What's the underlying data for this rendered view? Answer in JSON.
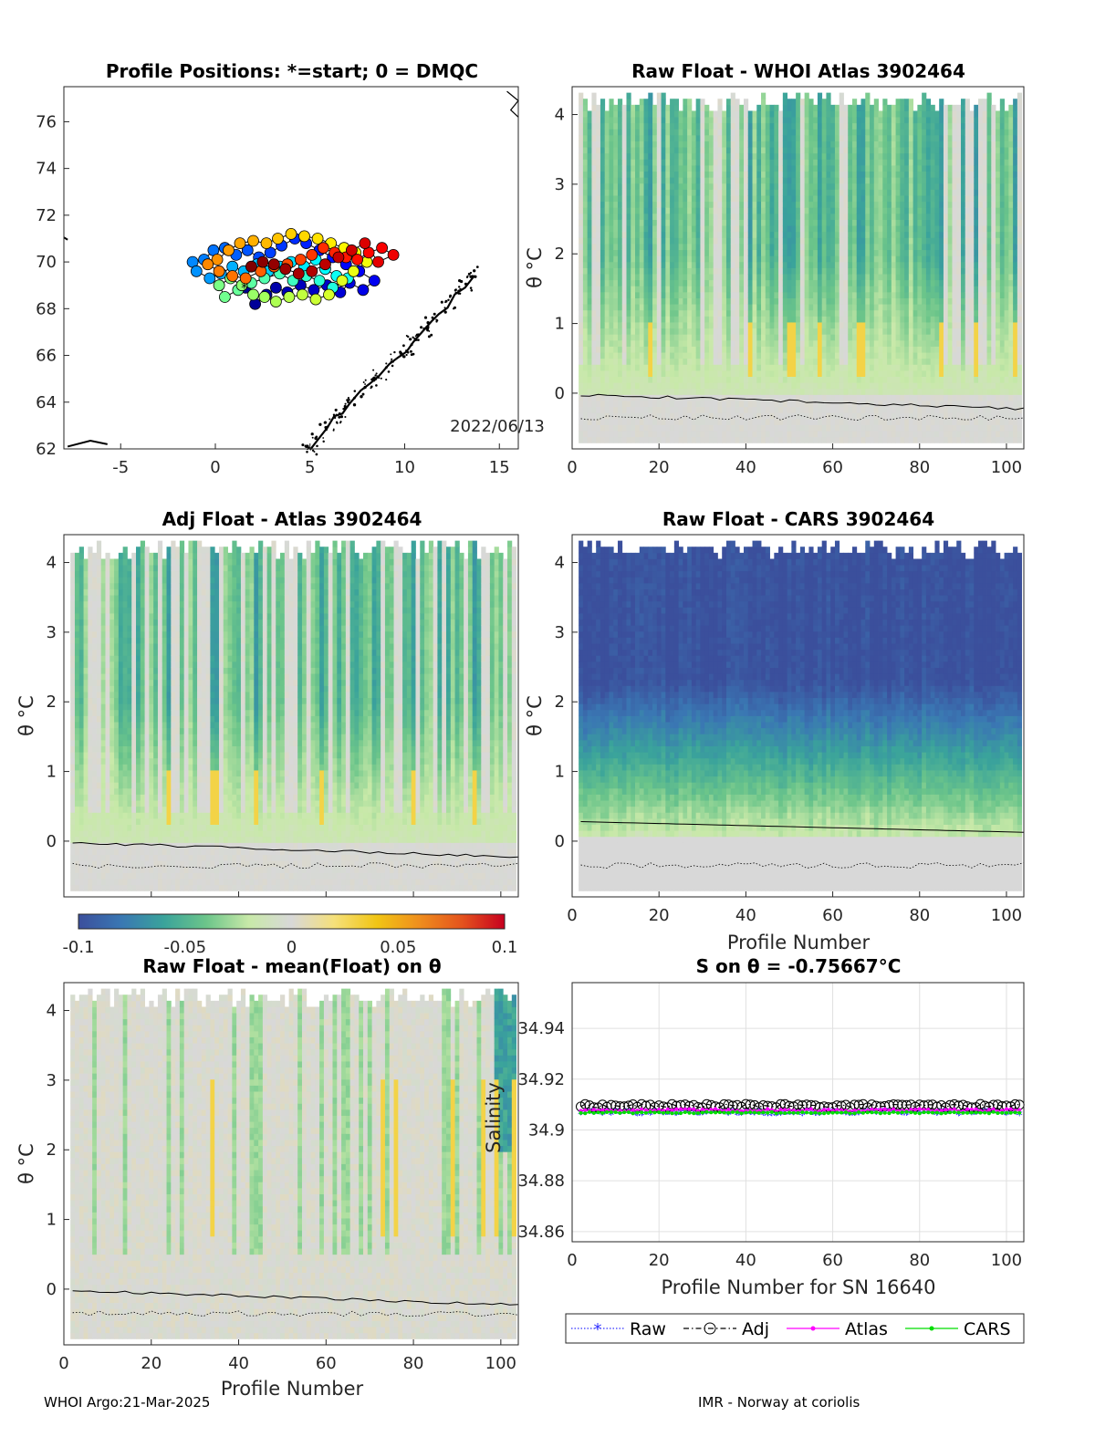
{
  "float_id": "3902464",
  "footer": {
    "left": "WHOI Argo:21-Mar-2025",
    "right": "IMR - Norway at coriolis"
  },
  "colorbar": {
    "ticks": [
      "-0.1",
      "-0.05",
      "0",
      "0.05",
      "0.1"
    ],
    "colors": [
      "#3b4f9c",
      "#3a77b3",
      "#3aa39b",
      "#6cc58a",
      "#c8e9a8",
      "#d8d8d8",
      "#f5e07a",
      "#f1c514",
      "#ef8e1d",
      "#e4531d",
      "#c7001f"
    ]
  },
  "chart_data": [
    {
      "type": "scatter",
      "panel": "positions",
      "title": "Profile Positions: *=start; 0 = DMQC",
      "date_label": "2022/06/13",
      "xlim": [
        -8,
        16
      ],
      "ylim": [
        62,
        77.5
      ],
      "xticks": [
        "-5",
        "0",
        "5",
        "10",
        "15"
      ],
      "yticks": [
        "62",
        "64",
        "66",
        "68",
        "70",
        "72",
        "74",
        "76"
      ],
      "profiles": [
        [
          1.6,
          68.9
        ],
        [
          2.1,
          68.2
        ],
        [
          2.7,
          68.6
        ],
        [
          3.2,
          68.9
        ],
        [
          3.8,
          68.7
        ],
        [
          4.5,
          69.0
        ],
        [
          5.2,
          68.8
        ],
        [
          5.9,
          69.0
        ],
        [
          6.6,
          68.7
        ],
        [
          7.1,
          69.1
        ],
        [
          7.8,
          68.8
        ],
        [
          8.4,
          69.2
        ],
        [
          7.6,
          69.6
        ],
        [
          6.9,
          69.9
        ],
        [
          6.2,
          70.2
        ],
        [
          5.5,
          70.5
        ],
        [
          4.8,
          70.8
        ],
        [
          4.2,
          71.0
        ],
        [
          3.5,
          70.7
        ],
        [
          2.9,
          70.4
        ],
        [
          2.3,
          70.2
        ],
        [
          1.7,
          70.5
        ],
        [
          1.1,
          70.3
        ],
        [
          0.5,
          70.6
        ],
        [
          -0.1,
          70.5
        ],
        [
          -0.6,
          70.1
        ],
        [
          -1.2,
          70.0
        ],
        [
          -1.0,
          69.6
        ],
        [
          -0.3,
          69.3
        ],
        [
          0.3,
          69.5
        ],
        [
          0.9,
          69.8
        ],
        [
          1.5,
          69.6
        ],
        [
          2.2,
          69.9
        ],
        [
          2.8,
          69.6
        ],
        [
          3.4,
          69.8
        ],
        [
          4.0,
          70.0
        ],
        [
          4.7,
          69.8
        ],
        [
          5.3,
          70.1
        ],
        [
          5.8,
          69.7
        ],
        [
          6.4,
          69.4
        ],
        [
          7.0,
          69.3
        ],
        [
          6.2,
          68.9
        ],
        [
          5.5,
          69.2
        ],
        [
          4.8,
          69.4
        ],
        [
          4.1,
          69.2
        ],
        [
          3.4,
          69.5
        ],
        [
          2.6,
          69.3
        ],
        [
          1.9,
          69.1
        ],
        [
          1.2,
          68.8
        ],
        [
          0.5,
          68.5
        ],
        [
          0.2,
          69.0
        ],
        [
          0.8,
          69.3
        ],
        [
          1.4,
          69.0
        ],
        [
          2.0,
          68.6
        ],
        [
          2.6,
          68.5
        ],
        [
          3.2,
          68.3
        ],
        [
          3.9,
          68.5
        ],
        [
          4.6,
          68.6
        ],
        [
          5.3,
          68.4
        ],
        [
          6.0,
          68.6
        ],
        [
          6.7,
          69.2
        ],
        [
          7.3,
          69.6
        ],
        [
          8.0,
          70.0
        ],
        [
          7.4,
          70.4
        ],
        [
          6.8,
          70.6
        ],
        [
          6.1,
          70.8
        ],
        [
          5.4,
          71.0
        ],
        [
          4.7,
          71.1
        ],
        [
          4.0,
          71.2
        ],
        [
          3.3,
          71.0
        ],
        [
          2.7,
          70.8
        ],
        [
          2.0,
          70.9
        ],
        [
          1.3,
          70.8
        ],
        [
          0.7,
          70.5
        ],
        [
          0.1,
          70.1
        ],
        [
          -0.4,
          69.9
        ],
        [
          0.2,
          69.6
        ],
        [
          0.9,
          69.4
        ],
        [
          1.6,
          69.3
        ],
        [
          2.4,
          69.6
        ],
        [
          3.1,
          69.8
        ],
        [
          3.8,
          69.9
        ],
        [
          4.5,
          70.1
        ],
        [
          5.1,
          70.3
        ],
        [
          5.7,
          70.6
        ],
        [
          6.3,
          70.4
        ],
        [
          6.9,
          70.2
        ],
        [
          7.5,
          70.1
        ],
        [
          8.1,
          70.4
        ],
        [
          8.8,
          70.6
        ],
        [
          9.4,
          70.3
        ],
        [
          8.6,
          70.0
        ],
        [
          7.9,
          70.8
        ],
        [
          7.2,
          70.5
        ],
        [
          6.5,
          70.2
        ],
        [
          5.8,
          69.9
        ],
        [
          5.1,
          69.6
        ],
        [
          4.4,
          69.5
        ],
        [
          3.7,
          69.7
        ],
        [
          3.1,
          69.9
        ],
        [
          2.5,
          70.0
        ],
        [
          1.9,
          69.8
        ]
      ]
    },
    {
      "type": "heatmap",
      "panel": "raw_whoi",
      "title": "Raw Float - WHOI Atlas  3902464",
      "ylabel": "θ °C",
      "xlim": [
        0,
        104
      ],
      "ylim": [
        -0.8,
        4.4
      ],
      "xticks": [
        "0",
        "20",
        "40",
        "60",
        "80",
        "100"
      ],
      "yticks": [
        "0",
        "1",
        "2",
        "3",
        "4"
      ],
      "colorscale": [
        -0.1,
        0.1
      ],
      "profile_range": [
        2,
        103
      ],
      "seed": 11,
      "style": "anomaly"
    },
    {
      "type": "heatmap",
      "panel": "adj_atlas",
      "title": "Adj Float - Atlas  3902464",
      "ylabel": "θ °C",
      "xlim": [
        0,
        104
      ],
      "ylim": [
        -0.8,
        4.4
      ],
      "xticks": [],
      "yticks": [
        "0",
        "1",
        "2",
        "3",
        "4"
      ],
      "colorscale": [
        -0.1,
        0.1
      ],
      "profile_range": [
        2,
        103
      ],
      "seed": 23,
      "style": "anomaly"
    },
    {
      "type": "heatmap",
      "panel": "raw_cars",
      "title": "Raw Float - CARS  3902464",
      "xlabel": "Profile Number",
      "ylabel": "θ °C",
      "xlim": [
        0,
        104
      ],
      "ylim": [
        -0.8,
        4.4
      ],
      "xticks": [
        "0",
        "20",
        "40",
        "60",
        "80",
        "100"
      ],
      "yticks": [
        "0",
        "1",
        "2",
        "3",
        "4"
      ],
      "colorscale": [
        -0.1,
        0.1
      ],
      "profile_range": [
        2,
        103
      ],
      "seed": 37,
      "style": "cars"
    },
    {
      "type": "heatmap",
      "panel": "raw_mean",
      "title": "Raw Float - mean(Float) on θ",
      "xlabel": "Profile Number",
      "ylabel": "θ °C",
      "xlim": [
        0,
        104
      ],
      "ylim": [
        -0.8,
        4.4
      ],
      "xticks": [
        "0",
        "20",
        "40",
        "60",
        "80",
        "100"
      ],
      "yticks": [
        "0",
        "1",
        "2",
        "3",
        "4"
      ],
      "colorscale": [
        -0.1,
        0.1
      ],
      "profile_range": [
        2,
        103
      ],
      "seed": 51,
      "style": "mean"
    },
    {
      "type": "line",
      "panel": "salinity",
      "title": "S on θ = -0.75667°C",
      "xlabel": "Profile Number for SN 16640",
      "ylabel": "Salinity",
      "xlim": [
        0,
        104
      ],
      "ylim": [
        34.856,
        34.958
      ],
      "xticks": [
        "0",
        "20",
        "40",
        "60",
        "80",
        "100"
      ],
      "yticks": [
        "34.86",
        "34.88",
        "34.9",
        "34.92",
        "34.94"
      ],
      "series": [
        {
          "name": "Raw",
          "color": "#3333ff",
          "marker": "*",
          "base": 34.9065,
          "jitter": 0.0008
        },
        {
          "name": "Adj",
          "color": "#000000",
          "marker": "o",
          "base": 34.9095,
          "jitter": 0.0007
        },
        {
          "name": "Atlas",
          "color": "#ff00ff",
          "marker": ".",
          "base": 34.9078,
          "jitter": 0.0005
        },
        {
          "name": "CARS",
          "color": "#00dd00",
          "marker": ".",
          "base": 34.9068,
          "jitter": 0.0003
        }
      ]
    }
  ]
}
